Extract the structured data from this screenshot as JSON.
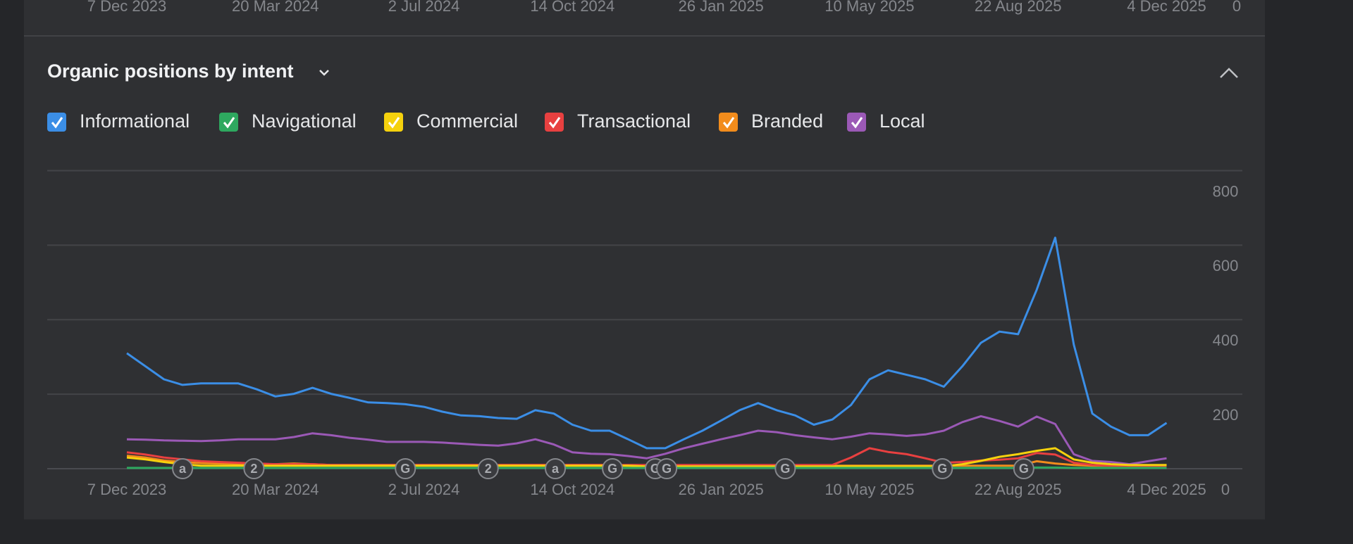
{
  "prev_chart_axis": {
    "labels": [
      "7 Dec 2023",
      "20 Mar 2024",
      "2 Jul 2024",
      "14 Oct 2024",
      "26 Jan 2025",
      "10 May 2025",
      "22 Aug 2025",
      "4 Dec 2025"
    ],
    "y_label": 0
  },
  "chart_data": {
    "type": "line",
    "title": "Organic positions by intent",
    "x": [
      "2023-12-07",
      "2023-12-20",
      "2024-01-02",
      "2024-01-15",
      "2024-01-28",
      "2024-02-10",
      "2024-02-23",
      "2024-03-07",
      "2024-03-20",
      "2024-04-02",
      "2024-04-15",
      "2024-04-28",
      "2024-05-11",
      "2024-05-24",
      "2024-06-06",
      "2024-06-19",
      "2024-07-02",
      "2024-07-15",
      "2024-07-28",
      "2024-08-10",
      "2024-08-23",
      "2024-09-05",
      "2024-09-18",
      "2024-10-01",
      "2024-10-14",
      "2024-10-27",
      "2024-11-09",
      "2024-11-22",
      "2024-12-05",
      "2024-12-18",
      "2024-12-31",
      "2025-01-13",
      "2025-01-26",
      "2025-02-08",
      "2025-02-21",
      "2025-03-06",
      "2025-03-19",
      "2025-04-01",
      "2025-04-14",
      "2025-04-27",
      "2025-05-10",
      "2025-05-23",
      "2025-06-05",
      "2025-06-18",
      "2025-07-01",
      "2025-07-14",
      "2025-07-27",
      "2025-08-09",
      "2025-08-22",
      "2025-09-04",
      "2025-09-17",
      "2025-09-30",
      "2025-10-13",
      "2025-10-26",
      "2025-11-08",
      "2025-11-21",
      "2025-12-04"
    ],
    "series": [
      {
        "name": "Informational",
        "color": "#3b8ee6",
        "values": [
          310,
          275,
          240,
          225,
          229,
          229,
          229,
          213,
          194,
          201,
          217,
          201,
          190,
          178,
          176,
          173,
          166,
          153,
          143,
          141,
          136,
          134,
          157,
          148,
          118,
          102,
          102,
          79,
          55,
          55,
          79,
          102,
          129,
          157,
          176,
          157,
          143,
          118,
          132,
          171,
          240,
          264,
          252,
          240,
          220,
          275,
          338,
          368,
          361,
          480,
          620,
          333,
          148,
          113,
          90,
          90,
          123
        ]
      },
      {
        "name": "Navigational",
        "color": "#2ea85f",
        "values": [
          2,
          2,
          2,
          2,
          2,
          2,
          2,
          2,
          2,
          2,
          2,
          2,
          2,
          2,
          2,
          2,
          2,
          2,
          2,
          2,
          2,
          2,
          2,
          2,
          2,
          2,
          2,
          2,
          2,
          2,
          2,
          2,
          2,
          2,
          2,
          2,
          2,
          2,
          2,
          2,
          2,
          2,
          2,
          2,
          2,
          2,
          2,
          2,
          2,
          3,
          3,
          2,
          2,
          2,
          2,
          2,
          2
        ]
      },
      {
        "name": "Commercial",
        "color": "#f5d10d",
        "values": [
          30,
          25,
          18,
          12,
          8,
          8,
          8,
          8,
          8,
          8,
          8,
          8,
          8,
          8,
          8,
          8,
          8,
          8,
          8,
          8,
          8,
          8,
          8,
          8,
          8,
          8,
          8,
          8,
          6,
          6,
          6,
          6,
          6,
          6,
          6,
          6,
          6,
          6,
          6,
          6,
          6,
          6,
          6,
          6,
          6,
          12,
          21,
          32,
          39,
          48,
          55,
          25,
          16,
          12,
          10,
          10,
          10
        ]
      },
      {
        "name": "Transactional",
        "color": "#e84040",
        "values": [
          44,
          38,
          30,
          25,
          20,
          18,
          16,
          14,
          12,
          12,
          12,
          10,
          10,
          10,
          10,
          10,
          10,
          10,
          10,
          10,
          10,
          10,
          10,
          10,
          10,
          10,
          10,
          10,
          10,
          10,
          10,
          10,
          10,
          10,
          10,
          10,
          10,
          10,
          10,
          30,
          55,
          45,
          39,
          28,
          16,
          18,
          22,
          24,
          28,
          42,
          38,
          16,
          10,
          8,
          8,
          8,
          8
        ]
      },
      {
        "name": "Branded",
        "color": "#f28c1c",
        "values": [
          35,
          30,
          22,
          18,
          15,
          14,
          13,
          12,
          12,
          14,
          12,
          10,
          10,
          10,
          10,
          10,
          10,
          10,
          10,
          10,
          10,
          10,
          10,
          10,
          10,
          10,
          10,
          8,
          8,
          8,
          8,
          8,
          8,
          8,
          8,
          8,
          8,
          8,
          8,
          8,
          8,
          8,
          8,
          8,
          8,
          8,
          8,
          8,
          8,
          20,
          14,
          10,
          8,
          8,
          8,
          8,
          8
        ]
      },
      {
        "name": "Local",
        "color": "#9b59b6",
        "values": [
          79,
          78,
          76,
          75,
          74,
          76,
          79,
          79,
          79,
          85,
          95,
          90,
          83,
          78,
          72,
          72,
          72,
          70,
          67,
          64,
          62,
          68,
          79,
          65,
          44,
          40,
          39,
          34,
          28,
          40,
          55,
          67,
          79,
          90,
          102,
          98,
          90,
          84,
          79,
          86,
          95,
          92,
          88,
          92,
          102,
          125,
          141,
          128,
          113,
          140,
          120,
          39,
          21,
          18,
          12,
          20,
          28
        ]
      }
    ],
    "xlim": [
      "2023-12-07",
      "2025-12-04"
    ],
    "xticks": [
      {
        "value": "2023-12-07",
        "label": "7 Dec 2023"
      },
      {
        "value": "2024-03-20",
        "label": "20 Mar 2024"
      },
      {
        "value": "2024-07-02",
        "label": "2 Jul 2024"
      },
      {
        "value": "2024-10-14",
        "label": "14 Oct 2024"
      },
      {
        "value": "2025-01-26",
        "label": "26 Jan 2025"
      },
      {
        "value": "2025-05-10",
        "label": "10 May 2025"
      },
      {
        "value": "2025-08-22",
        "label": "22 Aug 2025"
      },
      {
        "value": "2025-12-04",
        "label": "4 Dec 2025"
      }
    ],
    "ylim": [
      0,
      800
    ],
    "yticks": [
      0,
      200,
      400,
      600,
      800
    ],
    "grid": true,
    "annotations": [
      {
        "x": "2024-01-15",
        "label": "a"
      },
      {
        "x": "2024-03-05",
        "label": "2"
      },
      {
        "x": "2024-06-19",
        "label": "G"
      },
      {
        "x": "2024-08-16",
        "label": "2"
      },
      {
        "x": "2024-10-02",
        "label": "a"
      },
      {
        "x": "2024-11-11",
        "label": "G"
      },
      {
        "x": "2024-12-11",
        "label": "G"
      },
      {
        "x": "2024-12-19",
        "label": "G"
      },
      {
        "x": "2025-03-12",
        "label": "G"
      },
      {
        "x": "2025-06-30",
        "label": "G"
      },
      {
        "x": "2025-08-26",
        "label": "G"
      }
    ]
  }
}
